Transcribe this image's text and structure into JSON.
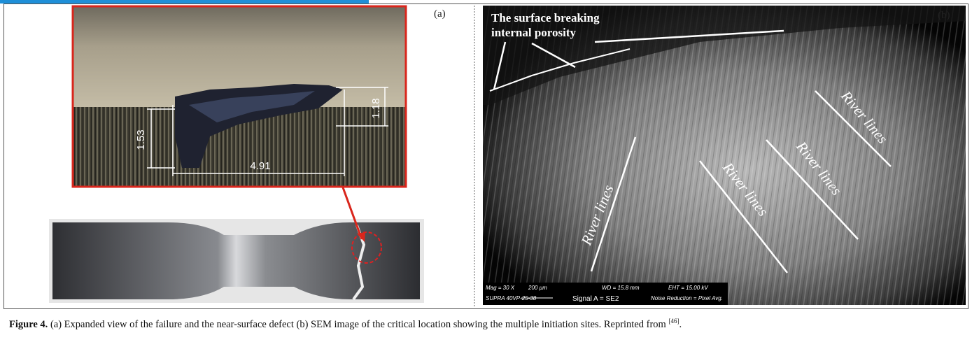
{
  "panel_a": {
    "label": "(a)",
    "dimensions": [
      "1.53",
      "4.91",
      "1.18"
    ]
  },
  "panel_b": {
    "label": "(b)",
    "annotation": [
      "The surface breaking",
      "internal porosity"
    ],
    "river_lines": [
      "River lines",
      "River lines",
      "River lines",
      "River lines"
    ],
    "info_bar": {
      "mag": "Mag =   30 X",
      "scale": "200 µm",
      "wd": "WD = 15.8 mm",
      "eht": "EHT = 15.00 kV",
      "device": "SUPRA 40VP-25-38",
      "signal": "Signal A = SE2",
      "noise": "Noise Reduction = Pixel Avg."
    }
  },
  "caption": {
    "label": "Figure 4.",
    "text": " (a) Expanded view of the failure and the near-surface defect (b) SEM image of the critical location showing the multiple initiation sites. Reprinted from ",
    "ref": "[46]",
    "end": "."
  }
}
